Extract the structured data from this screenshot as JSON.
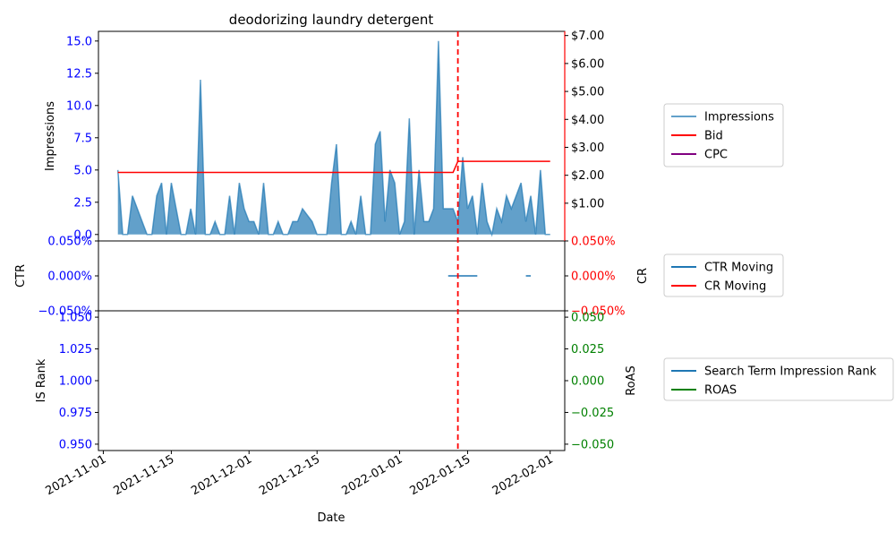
{
  "chart_data": {
    "type": "line",
    "title": "deodorizing laundry detergent",
    "xlabel": "Date",
    "x_ticks": [
      "2021-11-01",
      "2021-11-15",
      "2021-12-01",
      "2021-12-15",
      "2022-01-01",
      "2022-01-15",
      "2022-02-01"
    ],
    "x_range": [
      "2021-10-31",
      "2022-02-04"
    ],
    "vline_date": "2022-01-13",
    "colors": {
      "impressions": "#1f77b4",
      "bid": "#ff0000",
      "cpc": "#800080",
      "ctr": "#1f77b4",
      "cr": "#ff0000",
      "rank": "#1f77b4",
      "roas": "#008000",
      "left_tick": "#0000ff",
      "right_tick_cr": "#ff0000",
      "right_tick_roas": "#008000",
      "vline": "#ff0000"
    },
    "panels": [
      {
        "name": "impressions",
        "ylabel_left": "Impressions",
        "ylim_left": [
          -0.5,
          15.75
        ],
        "yticks_left": [
          "0.0",
          "2.5",
          "5.0",
          "7.5",
          "10.0",
          "12.5",
          "15.0"
        ],
        "ylim_right": [
          -0.35,
          7.15
        ],
        "yticks_right": [
          "$1.00",
          "$2.00",
          "$3.00",
          "$4.00",
          "$5.00",
          "$6.00",
          "$7.00"
        ],
        "series": [
          {
            "name": "Impressions",
            "kind": "area",
            "axis": "left",
            "x": [
              "2021-11-04",
              "2021-11-05",
              "2021-11-06",
              "2021-11-07",
              "2021-11-08",
              "2021-11-09",
              "2021-11-10",
              "2021-11-11",
              "2021-11-12",
              "2021-11-13",
              "2021-11-14",
              "2021-11-15",
              "2021-11-16",
              "2021-11-17",
              "2021-11-18",
              "2021-11-19",
              "2021-11-20",
              "2021-11-21",
              "2021-11-22",
              "2021-11-23",
              "2021-11-24",
              "2021-11-25",
              "2021-11-26",
              "2021-11-27",
              "2021-11-28",
              "2021-11-29",
              "2021-11-30",
              "2021-12-01",
              "2021-12-02",
              "2021-12-03",
              "2021-12-04",
              "2021-12-05",
              "2021-12-06",
              "2021-12-07",
              "2021-12-08",
              "2021-12-09",
              "2021-12-10",
              "2021-12-11",
              "2021-12-12",
              "2021-12-13",
              "2021-12-14",
              "2021-12-15",
              "2021-12-16",
              "2021-12-17",
              "2021-12-18",
              "2021-12-19",
              "2021-12-20",
              "2021-12-21",
              "2021-12-22",
              "2021-12-23",
              "2021-12-24",
              "2021-12-25",
              "2021-12-26",
              "2021-12-27",
              "2021-12-28",
              "2021-12-29",
              "2021-12-30",
              "2021-12-31",
              "2022-01-01",
              "2022-01-02",
              "2022-01-03",
              "2022-01-04",
              "2022-01-05",
              "2022-01-06",
              "2022-01-07",
              "2022-01-08",
              "2022-01-09",
              "2022-01-10",
              "2022-01-11",
              "2022-01-12",
              "2022-01-13",
              "2022-01-14",
              "2022-01-15",
              "2022-01-16",
              "2022-01-17",
              "2022-01-18",
              "2022-01-19",
              "2022-01-20",
              "2022-01-21",
              "2022-01-22",
              "2022-01-23",
              "2022-01-24",
              "2022-01-25",
              "2022-01-26",
              "2022-01-27",
              "2022-01-28",
              "2022-01-29",
              "2022-01-30",
              "2022-01-31",
              "2022-02-01"
            ],
            "values": [
              5,
              0,
              0,
              3,
              2,
              1,
              0,
              0,
              3,
              4,
              0,
              4,
              2,
              0,
              0,
              2,
              0,
              12,
              0,
              0,
              1,
              0,
              0,
              3,
              0,
              4,
              2,
              1,
              1,
              0,
              4,
              0,
              0,
              1,
              0,
              0,
              1,
              1,
              2,
              1.5,
              1,
              0,
              0,
              0,
              4,
              7,
              0,
              0,
              1,
              0,
              3,
              0,
              0,
              7,
              8,
              1,
              5,
              4,
              0,
              1,
              9,
              0,
              5,
              1,
              1,
              2,
              15,
              2,
              2,
              2,
              1,
              6,
              2,
              3,
              0,
              4,
              1,
              0,
              2,
              1,
              3,
              2,
              3,
              4,
              1,
              3,
              0,
              5,
              0,
              0
            ]
          },
          {
            "name": "Bid",
            "kind": "line",
            "axis": "right",
            "x": [
              "2021-11-04",
              "2022-01-12",
              "2022-01-13",
              "2022-02-01"
            ],
            "values": [
              2.1,
              2.1,
              2.5,
              2.5
            ]
          },
          {
            "name": "CPC",
            "kind": "line",
            "axis": "right",
            "x": [],
            "values": []
          }
        ]
      },
      {
        "name": "rates",
        "ylabel_left": "CTR",
        "ylabel_right": "CR",
        "ylim_left": [
          -0.05,
          0.05
        ],
        "yticks_left": [
          "−0.050%",
          "0.000%",
          "0.050%"
        ],
        "ylim_right": [
          -0.05,
          0.05
        ],
        "yticks_right": [
          "−0.050%",
          "0.000%",
          "0.050%"
        ],
        "series": [
          {
            "name": "CTR Moving",
            "kind": "line",
            "axis": "left",
            "segments": [
              {
                "x": [
                  "2022-01-11",
                  "2022-01-17"
                ],
                "values": [
                  0,
                  0
                ]
              },
              {
                "x": [
                  "2022-01-27",
                  "2022-01-28"
                ],
                "values": [
                  0,
                  0
                ]
              }
            ]
          },
          {
            "name": "CR Moving",
            "kind": "line",
            "axis": "right",
            "segments": []
          }
        ]
      },
      {
        "name": "rank",
        "ylabel_left": "IS Rank",
        "ylabel_right": "RoAS",
        "ylim_left": [
          0.945,
          1.055
        ],
        "yticks_left": [
          "0.950",
          "0.975",
          "1.000",
          "1.025",
          "1.050"
        ],
        "ylim_right": [
          -0.055,
          0.055
        ],
        "yticks_right": [
          "−0.050",
          "−0.025",
          "0.000",
          "0.025",
          "0.050"
        ],
        "series": [
          {
            "name": "Search Term Impression Rank",
            "kind": "line",
            "axis": "left",
            "x": [],
            "values": []
          },
          {
            "name": "ROAS",
            "kind": "line",
            "axis": "right",
            "x": [],
            "values": []
          }
        ]
      }
    ],
    "legends": [
      [
        "Impressions",
        "Bid",
        "CPC"
      ],
      [
        "CTR Moving",
        "CR Moving"
      ],
      [
        "Search Term Impression Rank",
        "ROAS"
      ]
    ]
  }
}
